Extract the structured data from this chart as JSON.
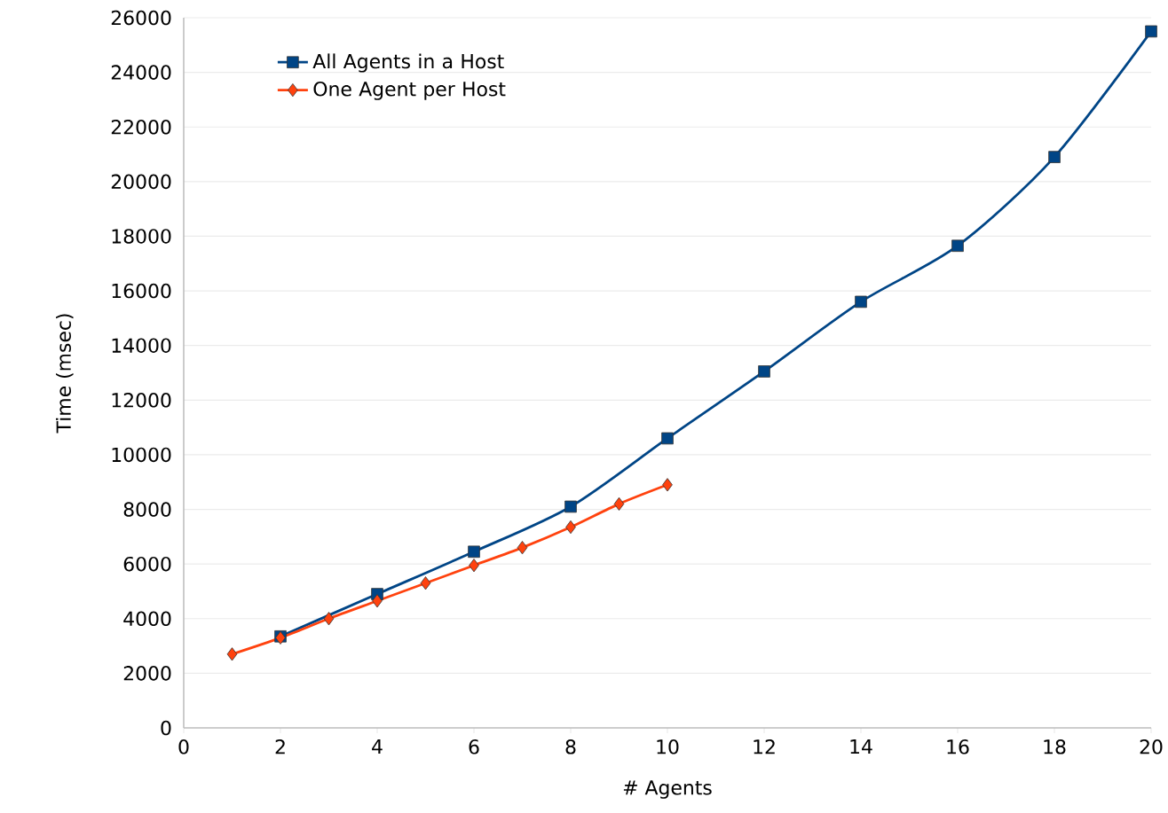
{
  "chart_data": {
    "type": "line",
    "xlabel": "# Agents",
    "ylabel": "Time (msec)",
    "series": [
      {
        "name": "All Agents in a Host",
        "color": "#004586",
        "marker": "square",
        "x": [
          2,
          4,
          6,
          8,
          10,
          12,
          14,
          16,
          18,
          20
        ],
        "values": [
          3350,
          4900,
          6450,
          8100,
          10600,
          13050,
          15600,
          17650,
          20900,
          25500
        ]
      },
      {
        "name": "One Agent per Host",
        "color": "#ff420e",
        "marker": "diamond",
        "x": [
          1,
          2,
          3,
          4,
          5,
          6,
          7,
          8,
          9,
          10
        ],
        "values": [
          2700,
          3300,
          4000,
          4650,
          5300,
          5950,
          6600,
          7350,
          8200,
          8900
        ]
      }
    ],
    "xlim": [
      0,
      20
    ],
    "xticks": [
      0,
      2,
      4,
      6,
      8,
      10,
      12,
      14,
      16,
      18,
      20
    ],
    "ylim": [
      0,
      26000
    ],
    "yticks": [
      0,
      2000,
      4000,
      6000,
      8000,
      10000,
      12000,
      14000,
      16000,
      18000,
      20000,
      22000,
      24000,
      26000
    ],
    "grid": "y",
    "legend": "top left"
  }
}
